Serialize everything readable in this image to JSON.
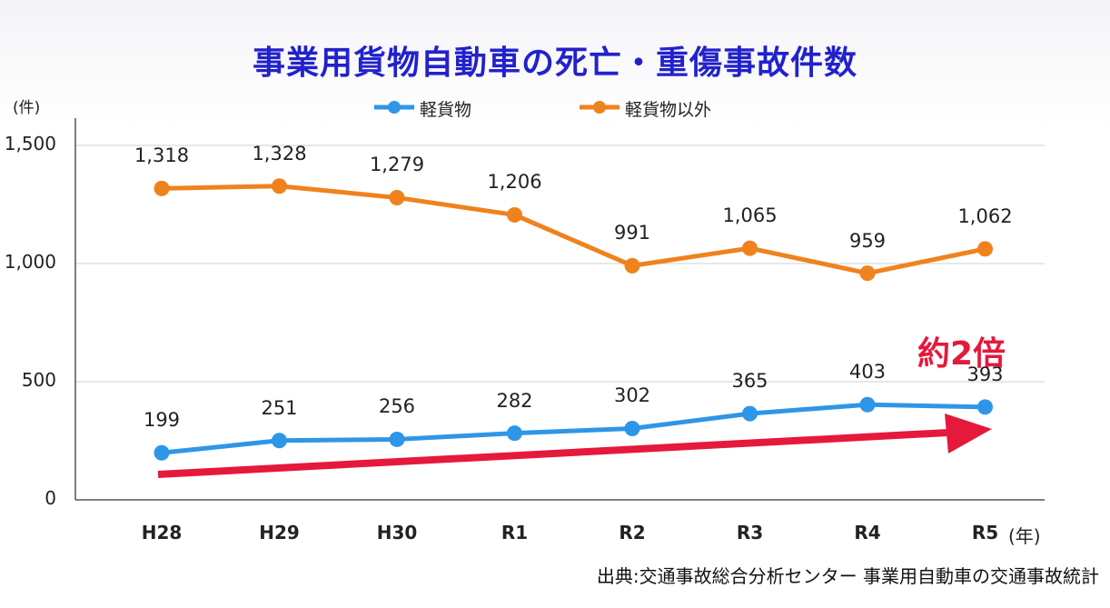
{
  "chart_data": {
    "type": "line",
    "title": "事業用貨物自動車の死亡・重傷事故件数",
    "ylabel": "(件)",
    "xunit": "(年)",
    "categories": [
      "H28",
      "H29",
      "H30",
      "R1",
      "R2",
      "R3",
      "R4",
      "R5"
    ],
    "ylim": [
      0,
      1500
    ],
    "yticks": [
      "0",
      "500",
      "1,000",
      "1,500"
    ],
    "series": [
      {
        "name": "軽貨物",
        "color": "#2e96e8",
        "values": [
          199,
          251,
          256,
          282,
          302,
          365,
          403,
          393
        ],
        "labels": [
          "199",
          "251",
          "256",
          "282",
          "302",
          "365",
          "403",
          "393"
        ]
      },
      {
        "name": "軽貨物以外",
        "color": "#f0821e",
        "values": [
          1318,
          1328,
          1279,
          1206,
          991,
          1065,
          959,
          1062
        ],
        "labels": [
          "1,318",
          "1,328",
          "1,279",
          "1,206",
          "991",
          "1,065",
          "959",
          "1,062"
        ]
      }
    ],
    "legend": "top-center",
    "grid": true,
    "annotation": {
      "text": "約2倍",
      "color": "#e5193b"
    }
  },
  "source": "出典:交通事故総合分析センター 事業用自動車の交通事故統計"
}
